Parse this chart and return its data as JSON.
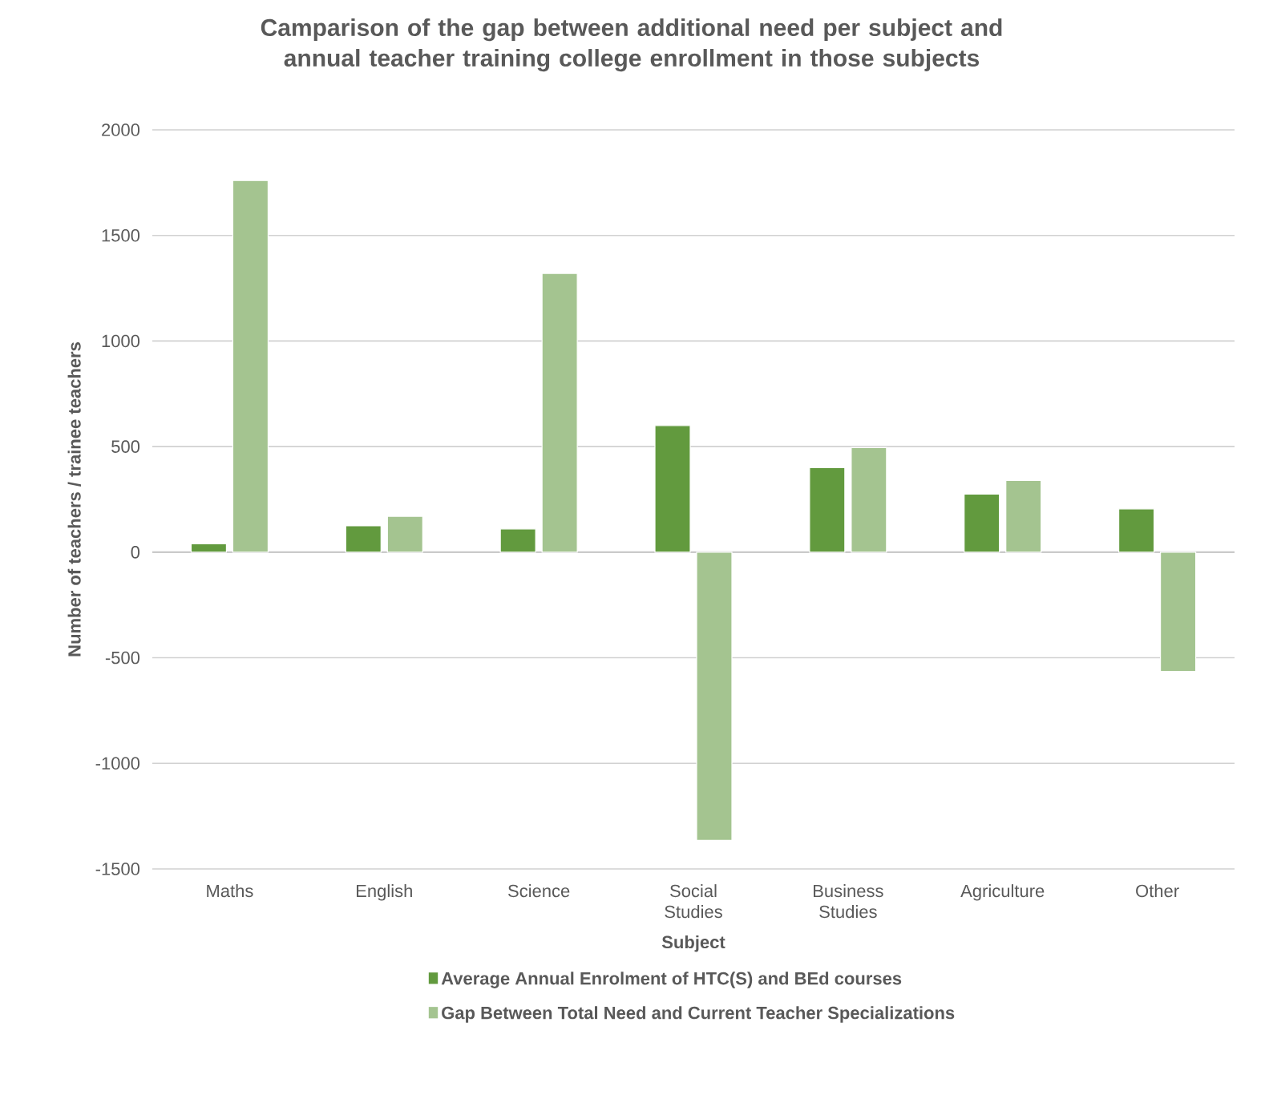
{
  "chart_data": {
    "type": "bar",
    "title": "Camparison of the gap between additional need per subject and annual teacher training college enrollment in those subjects",
    "xlabel": "Subject",
    "ylabel": "Number of teachers / trainee teachers",
    "categories": [
      "Maths",
      "English",
      "Science",
      "Social Studies",
      "Business Studies",
      "Agriculture",
      "Other"
    ],
    "series": [
      {
        "name": "Average Annual Enrolment of HTC(S) and BEd courses",
        "color": "#629a3e",
        "values": [
          40,
          125,
          110,
          600,
          400,
          275,
          205
        ]
      },
      {
        "name": "Gap Between Total Need and Current Teacher Specializations",
        "color": "#a4c490",
        "values": [
          1760,
          170,
          1320,
          -1365,
          495,
          340,
          -565
        ]
      }
    ],
    "ylim": [
      -1500,
      2000
    ],
    "yticks": [
      -1500,
      -1000,
      -500,
      0,
      500,
      1000,
      1500,
      2000
    ],
    "grid": "y",
    "legend": "bottom"
  }
}
